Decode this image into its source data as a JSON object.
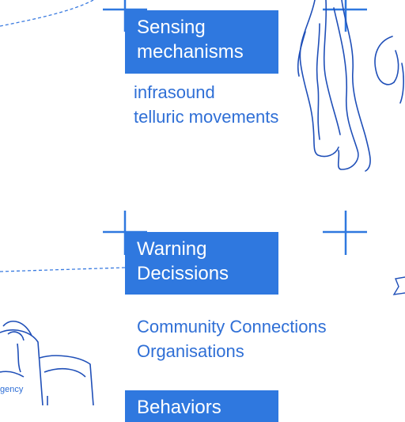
{
  "diagram": {
    "sensing": {
      "title_lines": [
        "Sensing",
        "mechanisms"
      ],
      "items": [
        "infrasound",
        "telluric movements"
      ]
    },
    "warning": {
      "title_lines": [
        "Warning",
        "Decissions"
      ],
      "items": [
        "Community Connections",
        "Organisations"
      ]
    },
    "behaviours": {
      "title_lines": [
        "Behaviors"
      ]
    },
    "bag_tag": "gency"
  },
  "colors": {
    "box_fill": "#2f78df",
    "ink": "#2f6fd6",
    "sketch": "#1f4fb8",
    "background": "#ffffff"
  }
}
